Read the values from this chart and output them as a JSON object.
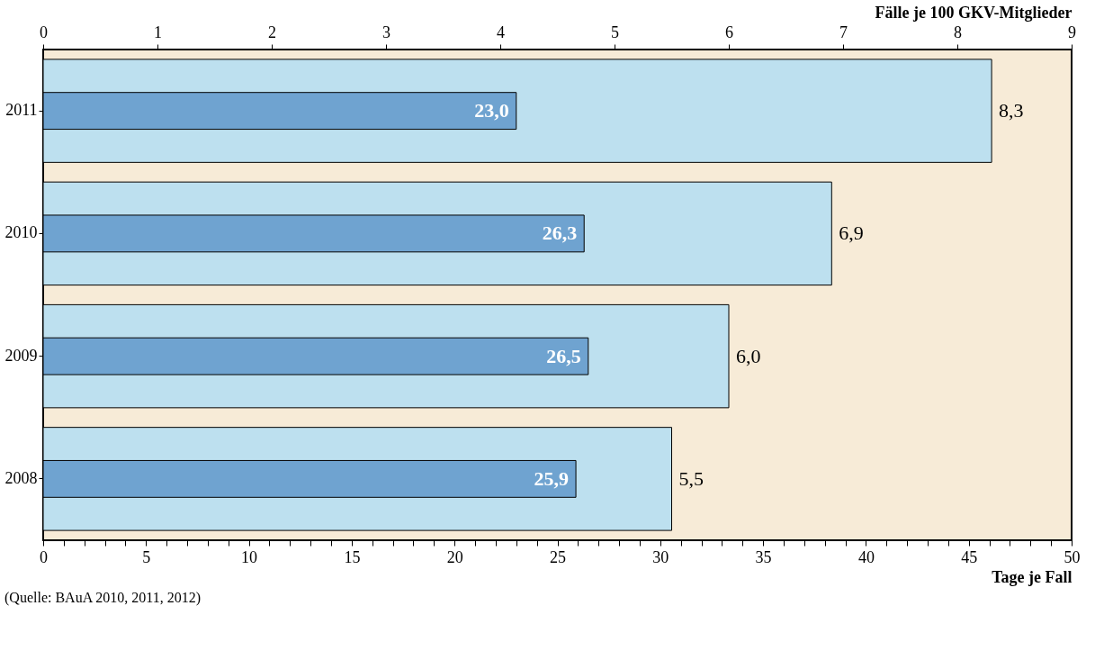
{
  "chart_data": {
    "type": "bar",
    "orientation": "horizontal",
    "categories": [
      "2011",
      "2010",
      "2009",
      "2008"
    ],
    "xlabel": "Tage je Fall",
    "x2label": "Fälle je 100 GKV-Mitglieder",
    "xlim": [
      0,
      50
    ],
    "xticks": [
      0,
      {
        "value": 1,
        "label": null
      },
      {
        "value": 2,
        "label": null
      },
      {
        "value": 3,
        "label": null
      },
      {
        "value": 4,
        "label": null
      },
      5,
      {
        "value": 6,
        "label": null
      },
      {
        "value": 7,
        "label": null
      },
      {
        "value": 8,
        "label": null
      },
      {
        "value": 9,
        "label": null
      },
      10,
      {
        "value": 11,
        "label": null
      },
      {
        "value": 12,
        "label": null
      },
      {
        "value": 13,
        "label": null
      },
      {
        "value": 14,
        "label": null
      },
      15,
      {
        "value": 16,
        "label": null
      },
      {
        "value": 17,
        "label": null
      },
      {
        "value": 18,
        "label": null
      },
      {
        "value": 19,
        "label": null
      },
      20,
      {
        "value": 21,
        "label": null
      },
      {
        "value": 22,
        "label": null
      },
      {
        "value": 23,
        "label": null
      },
      {
        "value": 24,
        "label": null
      },
      25,
      {
        "value": 26,
        "label": null
      },
      {
        "value": 27,
        "label": null
      },
      {
        "value": 28,
        "label": null
      },
      {
        "value": 29,
        "label": null
      },
      30,
      {
        "value": 31,
        "label": null
      },
      {
        "value": 32,
        "label": null
      },
      {
        "value": 33,
        "label": null
      },
      {
        "value": 34,
        "label": null
      },
      35,
      {
        "value": 36,
        "label": null
      },
      {
        "value": 37,
        "label": null
      },
      {
        "value": 38,
        "label": null
      },
      {
        "value": 39,
        "label": null
      },
      40,
      {
        "value": 41,
        "label": null
      },
      {
        "value": 42,
        "label": null
      },
      {
        "value": 43,
        "label": null
      },
      {
        "value": 44,
        "label": null
      },
      45,
      {
        "value": 46,
        "label": null
      },
      {
        "value": 47,
        "label": null
      },
      {
        "value": 48,
        "label": null
      },
      {
        "value": 49,
        "label": null
      },
      50
    ],
    "x2lim": [
      0,
      9
    ],
    "x2ticks": [
      0,
      1,
      2,
      3,
      4,
      5,
      6,
      7,
      8,
      9
    ],
    "series": [
      {
        "color": "#bde0ef",
        "axis": "x2",
        "values": [
          8.3,
          6.9,
          6.0,
          5.5
        ],
        "value_labels": [
          "8,3",
          "6,9",
          "6,0",
          "5,5"
        ]
      },
      {
        "color": "#6fa3d0",
        "values": [
          23.0,
          26.3,
          26.5,
          25.9
        ],
        "value_labels": [
          "23,0",
          "26,3",
          "26,5",
          "25,9"
        ]
      }
    ],
    "annotations": [
      "(Quelle: BAuA 2010, 2011, 2012)"
    ]
  }
}
